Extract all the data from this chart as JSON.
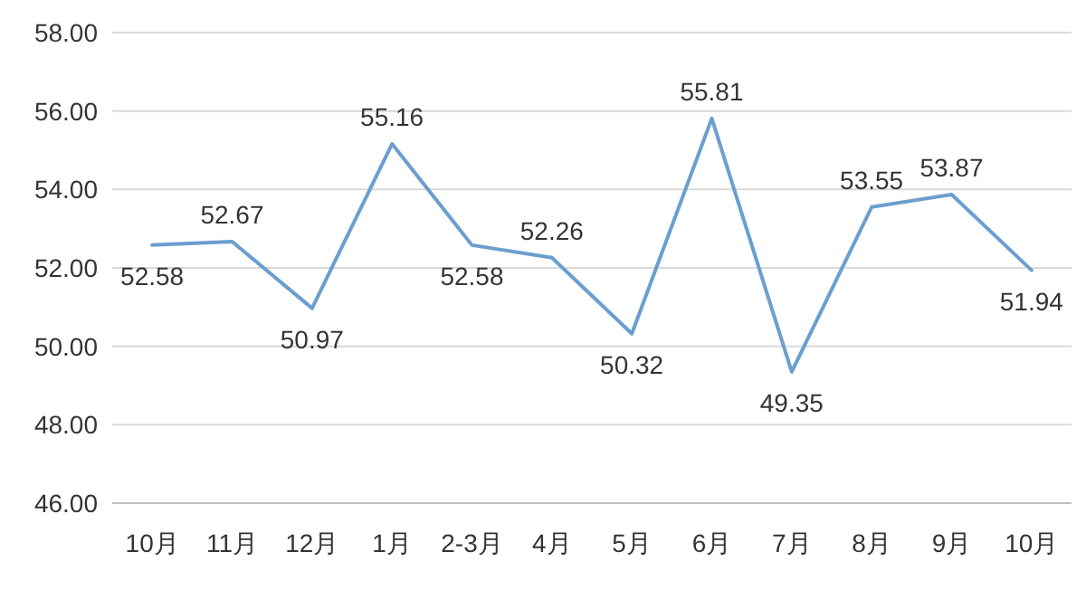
{
  "chart_data": {
    "type": "line",
    "categories": [
      "10月",
      "11月",
      "12月",
      "1月",
      "2-3月",
      "4月",
      "5月",
      "6月",
      "7月",
      "8月",
      "9月",
      "10月"
    ],
    "values": [
      52.58,
      52.67,
      50.97,
      55.16,
      52.58,
      52.26,
      50.32,
      55.81,
      49.35,
      53.55,
      53.87,
      51.94
    ],
    "color": "#6a9fcf",
    "ylim": [
      46,
      58
    ],
    "yticks": [
      {
        "value": 46,
        "label": "46.00"
      },
      {
        "value": 48,
        "label": "48.00"
      },
      {
        "value": 50,
        "label": "50.00"
      },
      {
        "value": 52,
        "label": "52.00"
      },
      {
        "value": 54,
        "label": "54.00"
      },
      {
        "value": 56,
        "label": "56.00"
      },
      {
        "value": 58,
        "label": "58.00"
      }
    ],
    "grid": "y",
    "data_labels": true
  }
}
